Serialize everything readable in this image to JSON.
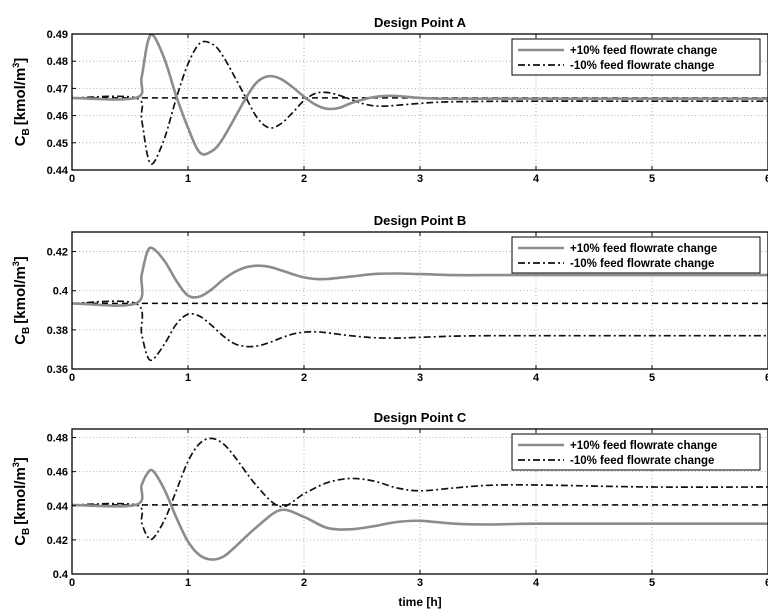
{
  "chart_data": [
    {
      "type": "line",
      "title": "Design Point A",
      "xlabel": "",
      "ylabel": "C_B [kmol/m^3]",
      "xlim": [
        0,
        6
      ],
      "ylim": [
        0.44,
        0.49
      ],
      "xticks": [
        0,
        1,
        2,
        3,
        4,
        5,
        6
      ],
      "xtick_labels": [
        "0",
        "1",
        "2",
        "3",
        "4",
        "5",
        "6"
      ],
      "yticks": [
        0.44,
        0.45,
        0.46,
        0.47,
        0.48,
        0.49
      ],
      "ytick_labels": [
        "0.44",
        "0.45",
        "0.46",
        "0.47",
        "0.48",
        "0.49"
      ],
      "grid": true,
      "legend_position": "top-right",
      "series": [
        {
          "name": "+10% feed flowrate change",
          "color": "#8c8c8c",
          "style": "solid",
          "x": [
            0,
            0.55,
            0.6,
            0.65,
            0.7,
            0.8,
            0.9,
            1.0,
            1.1,
            1.2,
            1.3,
            1.5,
            1.6,
            1.7,
            1.8,
            1.9,
            2.0,
            2.1,
            2.2,
            2.3,
            2.4,
            2.5,
            2.6,
            2.7,
            2.8,
            3.0,
            3.2,
            3.5,
            4.0,
            5.0,
            6.0
          ],
          "y": [
            0.4665,
            0.4665,
            0.474,
            0.4865,
            0.4895,
            0.4805,
            0.467,
            0.4555,
            0.4465,
            0.4468,
            0.4515,
            0.4665,
            0.4725,
            0.4745,
            0.4735,
            0.4705,
            0.467,
            0.464,
            0.4625,
            0.4628,
            0.4645,
            0.4658,
            0.4668,
            0.4672,
            0.4672,
            0.4665,
            0.4662,
            0.4662,
            0.4662,
            0.4662,
            0.4662
          ]
        },
        {
          "name": "-10% feed flowrate change",
          "color": "#111111",
          "style": "dashdot",
          "x": [
            0,
            0.55,
            0.6,
            0.65,
            0.7,
            0.8,
            0.9,
            1.0,
            1.1,
            1.2,
            1.3,
            1.5,
            1.6,
            1.7,
            1.8,
            1.9,
            2.0,
            2.1,
            2.2,
            2.3,
            2.4,
            2.5,
            2.6,
            2.7,
            2.8,
            3.0,
            3.2,
            3.5,
            4.0,
            5.0,
            6.0
          ],
          "y": [
            0.4665,
            0.4665,
            0.4585,
            0.4455,
            0.4425,
            0.452,
            0.4665,
            0.479,
            0.4865,
            0.4865,
            0.482,
            0.4665,
            0.459,
            0.4555,
            0.457,
            0.461,
            0.4655,
            0.4682,
            0.4685,
            0.4675,
            0.466,
            0.4645,
            0.4636,
            0.4635,
            0.4638,
            0.4645,
            0.465,
            0.4652,
            0.4653,
            0.4653,
            0.4653
          ]
        },
        {
          "name": "",
          "color": "#000000",
          "style": "dashed",
          "x": [
            0,
            6
          ],
          "y": [
            0.4665,
            0.4665
          ]
        }
      ]
    },
    {
      "type": "line",
      "title": "Design Point B",
      "xlabel": "",
      "ylabel": "C_B [kmol/m^3]",
      "xlim": [
        0,
        6
      ],
      "ylim": [
        0.36,
        0.43
      ],
      "xticks": [
        0,
        1,
        2,
        3,
        4,
        5,
        6
      ],
      "xtick_labels": [
        "0",
        "1",
        "2",
        "3",
        "4",
        "5",
        "6"
      ],
      "yticks": [
        0.36,
        0.38,
        0.4,
        0.42
      ],
      "ytick_labels": [
        "0.36",
        "0.38",
        "0.4",
        "0.42"
      ],
      "grid": true,
      "legend_position": "top-right",
      "series": [
        {
          "name": "+10% feed flowrate change",
          "color": "#8c8c8c",
          "style": "solid",
          "x": [
            0,
            0.55,
            0.6,
            0.65,
            0.7,
            0.8,
            0.9,
            1.0,
            1.1,
            1.2,
            1.3,
            1.4,
            1.5,
            1.6,
            1.7,
            1.8,
            1.9,
            2.0,
            2.1,
            2.2,
            2.4,
            2.6,
            2.8,
            3.0,
            3.3,
            3.6,
            4.0,
            5.0,
            6.0
          ],
          "y": [
            0.3935,
            0.3935,
            0.408,
            0.42,
            0.4215,
            0.415,
            0.405,
            0.3975,
            0.397,
            0.4005,
            0.4055,
            0.4095,
            0.412,
            0.4128,
            0.4122,
            0.4105,
            0.4085,
            0.4068,
            0.406,
            0.406,
            0.4072,
            0.4085,
            0.4088,
            0.4085,
            0.408,
            0.408,
            0.408,
            0.408,
            0.408
          ]
        },
        {
          "name": "-10% feed flowrate change",
          "color": "#111111",
          "style": "dashdot",
          "x": [
            0,
            0.55,
            0.6,
            0.65,
            0.7,
            0.8,
            0.9,
            1.0,
            1.1,
            1.2,
            1.3,
            1.4,
            1.5,
            1.6,
            1.7,
            1.8,
            1.9,
            2.0,
            2.1,
            2.2,
            2.4,
            2.6,
            2.8,
            3.0,
            3.3,
            3.6,
            4.0,
            5.0,
            6.0
          ],
          "y": [
            0.3935,
            0.3935,
            0.378,
            0.3665,
            0.365,
            0.373,
            0.383,
            0.388,
            0.387,
            0.3825,
            0.377,
            0.373,
            0.3715,
            0.3718,
            0.3735,
            0.3758,
            0.3778,
            0.3788,
            0.379,
            0.3785,
            0.377,
            0.376,
            0.3758,
            0.3762,
            0.3768,
            0.377,
            0.377,
            0.377,
            0.377
          ]
        },
        {
          "name": "",
          "color": "#000000",
          "style": "dashed",
          "x": [
            0,
            6
          ],
          "y": [
            0.3935,
            0.3935
          ]
        }
      ]
    },
    {
      "type": "line",
      "title": "Design Point C",
      "xlabel": "time [h]",
      "ylabel": "C_B [kmol/m^3]",
      "xlim": [
        0,
        6
      ],
      "ylim": [
        0.4,
        0.485
      ],
      "xticks": [
        0,
        1,
        2,
        3,
        4,
        5,
        6
      ],
      "xtick_labels": [
        "0",
        "1",
        "2",
        "3",
        "4",
        "5",
        "6"
      ],
      "yticks": [
        0.4,
        0.42,
        0.44,
        0.46,
        0.48
      ],
      "ytick_labels": [
        "0.4",
        "0.42",
        "0.44",
        "0.46",
        "0.48"
      ],
      "grid": true,
      "legend_position": "top-right",
      "series": [
        {
          "name": "+10% feed flowrate change",
          "color": "#8c8c8c",
          "style": "solid",
          "x": [
            0,
            0.55,
            0.6,
            0.65,
            0.7,
            0.8,
            0.9,
            1.0,
            1.1,
            1.2,
            1.3,
            1.4,
            1.6,
            1.8,
            2.0,
            2.2,
            2.4,
            2.6,
            2.8,
            3.0,
            3.3,
            3.6,
            4.0,
            5.0,
            6.0
          ],
          "y": [
            0.4405,
            0.4405,
            0.452,
            0.459,
            0.4603,
            0.449,
            0.433,
            0.419,
            0.411,
            0.4085,
            0.41,
            0.4155,
            0.428,
            0.4375,
            0.4335,
            0.427,
            0.4262,
            0.428,
            0.4305,
            0.4312,
            0.4295,
            0.429,
            0.4295,
            0.4295,
            0.4295
          ]
        },
        {
          "name": "-10% feed flowrate change",
          "color": "#111111",
          "style": "dashdot",
          "x": [
            0,
            0.55,
            0.6,
            0.65,
            0.7,
            0.8,
            0.9,
            1.0,
            1.1,
            1.2,
            1.3,
            1.4,
            1.6,
            1.8,
            2.0,
            2.2,
            2.4,
            2.6,
            2.8,
            3.0,
            3.3,
            3.6,
            4.0,
            5.0,
            6.0
          ],
          "y": [
            0.4405,
            0.4405,
            0.43,
            0.422,
            0.421,
            0.432,
            0.449,
            0.466,
            0.4765,
            0.4795,
            0.4765,
            0.469,
            0.451,
            0.4395,
            0.447,
            0.4535,
            0.456,
            0.4545,
            0.4505,
            0.4488,
            0.4505,
            0.452,
            0.4522,
            0.451,
            0.451
          ]
        },
        {
          "name": "",
          "color": "#000000",
          "style": "dashed",
          "x": [
            0,
            6
          ],
          "y": [
            0.4405,
            0.4405
          ]
        }
      ]
    }
  ]
}
